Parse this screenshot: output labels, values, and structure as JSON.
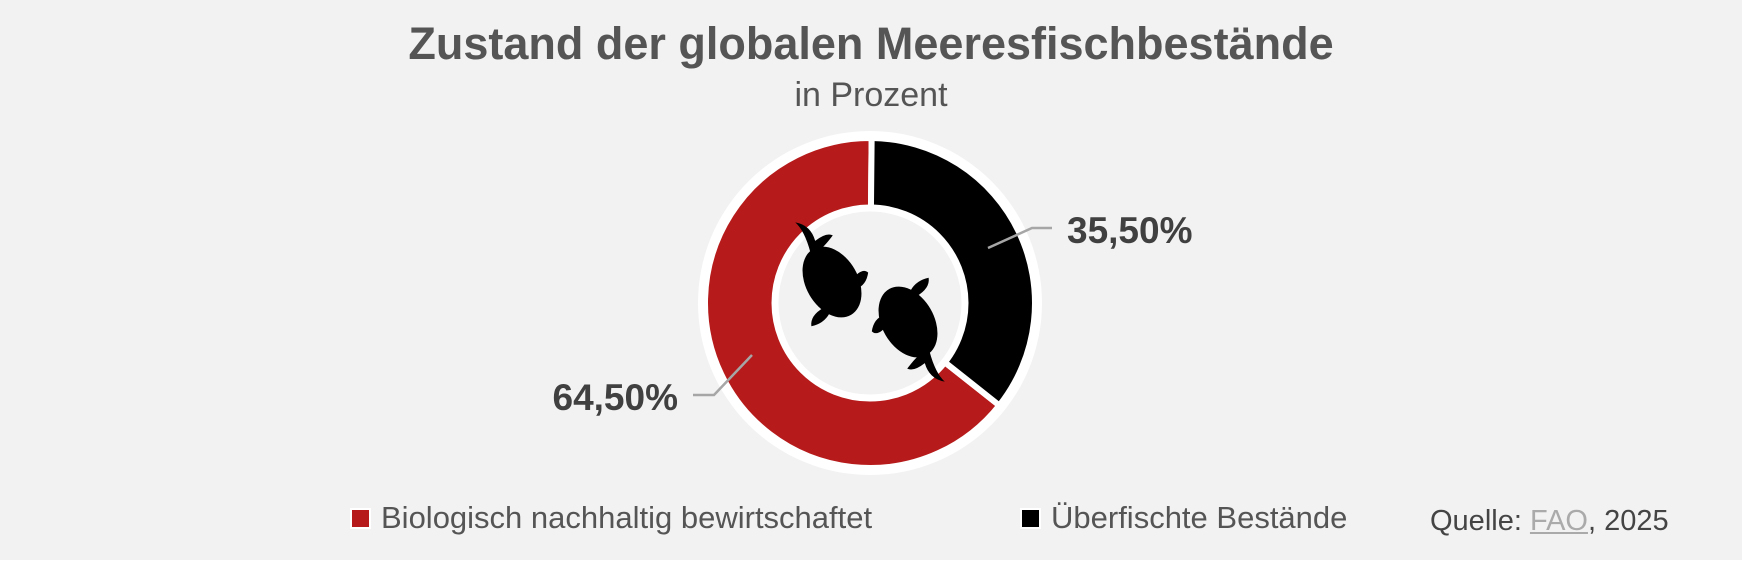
{
  "chart_data": {
    "type": "pie",
    "title": "Zustand der globalen Meeresfischbestände",
    "subtitle": "in Prozent",
    "categories": [
      "Biologisch nachhaltig bewirtschaftet",
      "Überfischte Bestände"
    ],
    "values": [
      64.5,
      35.5
    ],
    "data_labels": [
      "64,50%",
      "35,50%"
    ],
    "colors": [
      "#b71a1a",
      "#000000"
    ],
    "donut": true,
    "center_icon": "two-fish-icon",
    "legend_placement": "bottom"
  },
  "source": {
    "prefix": "Quelle: ",
    "link": "FAO",
    "suffix": ", 2025"
  }
}
